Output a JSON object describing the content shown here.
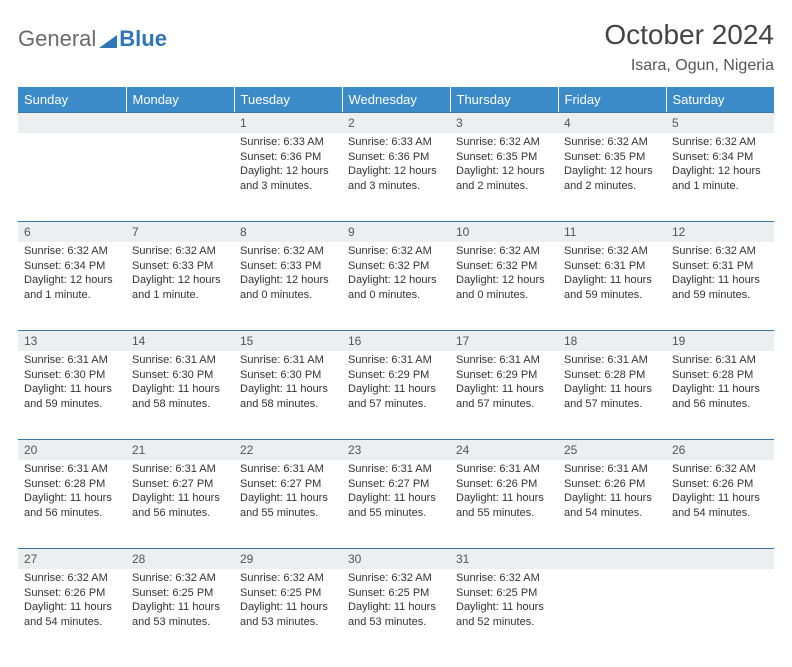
{
  "logo": {
    "general": "General",
    "blue": "Blue"
  },
  "title": "October 2024",
  "location": "Isara, Ogun, Nigeria",
  "colors": {
    "header_bg": "#3b8bc9",
    "daynum_bg": "#eceeef",
    "border": "#3b76a5",
    "logo_blue": "#2f75b5"
  },
  "weekdays": [
    "Sunday",
    "Monday",
    "Tuesday",
    "Wednesday",
    "Thursday",
    "Friday",
    "Saturday"
  ],
  "weeks": [
    [
      null,
      null,
      {
        "n": "1",
        "sunrise": "6:33 AM",
        "sunset": "6:36 PM",
        "daylight": "12 hours and 3 minutes."
      },
      {
        "n": "2",
        "sunrise": "6:33 AM",
        "sunset": "6:36 PM",
        "daylight": "12 hours and 3 minutes."
      },
      {
        "n": "3",
        "sunrise": "6:32 AM",
        "sunset": "6:35 PM",
        "daylight": "12 hours and 2 minutes."
      },
      {
        "n": "4",
        "sunrise": "6:32 AM",
        "sunset": "6:35 PM",
        "daylight": "12 hours and 2 minutes."
      },
      {
        "n": "5",
        "sunrise": "6:32 AM",
        "sunset": "6:34 PM",
        "daylight": "12 hours and 1 minute."
      }
    ],
    [
      {
        "n": "6",
        "sunrise": "6:32 AM",
        "sunset": "6:34 PM",
        "daylight": "12 hours and 1 minute."
      },
      {
        "n": "7",
        "sunrise": "6:32 AM",
        "sunset": "6:33 PM",
        "daylight": "12 hours and 1 minute."
      },
      {
        "n": "8",
        "sunrise": "6:32 AM",
        "sunset": "6:33 PM",
        "daylight": "12 hours and 0 minutes."
      },
      {
        "n": "9",
        "sunrise": "6:32 AM",
        "sunset": "6:32 PM",
        "daylight": "12 hours and 0 minutes."
      },
      {
        "n": "10",
        "sunrise": "6:32 AM",
        "sunset": "6:32 PM",
        "daylight": "12 hours and 0 minutes."
      },
      {
        "n": "11",
        "sunrise": "6:32 AM",
        "sunset": "6:31 PM",
        "daylight": "11 hours and 59 minutes."
      },
      {
        "n": "12",
        "sunrise": "6:32 AM",
        "sunset": "6:31 PM",
        "daylight": "11 hours and 59 minutes."
      }
    ],
    [
      {
        "n": "13",
        "sunrise": "6:31 AM",
        "sunset": "6:30 PM",
        "daylight": "11 hours and 59 minutes."
      },
      {
        "n": "14",
        "sunrise": "6:31 AM",
        "sunset": "6:30 PM",
        "daylight": "11 hours and 58 minutes."
      },
      {
        "n": "15",
        "sunrise": "6:31 AM",
        "sunset": "6:30 PM",
        "daylight": "11 hours and 58 minutes."
      },
      {
        "n": "16",
        "sunrise": "6:31 AM",
        "sunset": "6:29 PM",
        "daylight": "11 hours and 57 minutes."
      },
      {
        "n": "17",
        "sunrise": "6:31 AM",
        "sunset": "6:29 PM",
        "daylight": "11 hours and 57 minutes."
      },
      {
        "n": "18",
        "sunrise": "6:31 AM",
        "sunset": "6:28 PM",
        "daylight": "11 hours and 57 minutes."
      },
      {
        "n": "19",
        "sunrise": "6:31 AM",
        "sunset": "6:28 PM",
        "daylight": "11 hours and 56 minutes."
      }
    ],
    [
      {
        "n": "20",
        "sunrise": "6:31 AM",
        "sunset": "6:28 PM",
        "daylight": "11 hours and 56 minutes."
      },
      {
        "n": "21",
        "sunrise": "6:31 AM",
        "sunset": "6:27 PM",
        "daylight": "11 hours and 56 minutes."
      },
      {
        "n": "22",
        "sunrise": "6:31 AM",
        "sunset": "6:27 PM",
        "daylight": "11 hours and 55 minutes."
      },
      {
        "n": "23",
        "sunrise": "6:31 AM",
        "sunset": "6:27 PM",
        "daylight": "11 hours and 55 minutes."
      },
      {
        "n": "24",
        "sunrise": "6:31 AM",
        "sunset": "6:26 PM",
        "daylight": "11 hours and 55 minutes."
      },
      {
        "n": "25",
        "sunrise": "6:31 AM",
        "sunset": "6:26 PM",
        "daylight": "11 hours and 54 minutes."
      },
      {
        "n": "26",
        "sunrise": "6:32 AM",
        "sunset": "6:26 PM",
        "daylight": "11 hours and 54 minutes."
      }
    ],
    [
      {
        "n": "27",
        "sunrise": "6:32 AM",
        "sunset": "6:26 PM",
        "daylight": "11 hours and 54 minutes."
      },
      {
        "n": "28",
        "sunrise": "6:32 AM",
        "sunset": "6:25 PM",
        "daylight": "11 hours and 53 minutes."
      },
      {
        "n": "29",
        "sunrise": "6:32 AM",
        "sunset": "6:25 PM",
        "daylight": "11 hours and 53 minutes."
      },
      {
        "n": "30",
        "sunrise": "6:32 AM",
        "sunset": "6:25 PM",
        "daylight": "11 hours and 53 minutes."
      },
      {
        "n": "31",
        "sunrise": "6:32 AM",
        "sunset": "6:25 PM",
        "daylight": "11 hours and 52 minutes."
      },
      null,
      null
    ]
  ],
  "labels": {
    "sunrise": "Sunrise:",
    "sunset": "Sunset:",
    "daylight": "Daylight:"
  }
}
